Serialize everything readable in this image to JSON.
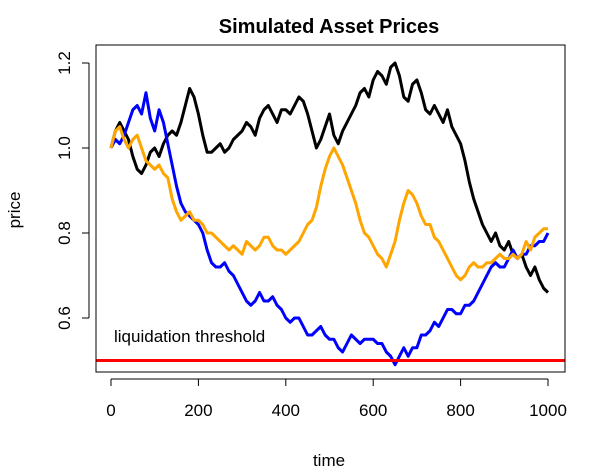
{
  "chart_data": {
    "type": "line",
    "title": "Simulated Asset Prices",
    "xlabel": "time",
    "ylabel": "price",
    "xlim": [
      0,
      1000
    ],
    "ylim": [
      0.5,
      1.2
    ],
    "x_ticks": [
      0,
      200,
      400,
      600,
      800,
      1000
    ],
    "y_ticks": [
      0.6,
      0.8,
      1.0,
      1.2
    ],
    "x_tick_labels": [
      "0",
      "200",
      "400",
      "600",
      "800",
      "1000"
    ],
    "y_tick_labels": [
      "0.6",
      "0.8",
      "1.0",
      "1.2"
    ],
    "grid": false,
    "legend": "none",
    "threshold": {
      "value": 0.5,
      "label": "liquidation threshold",
      "color": "#ff0000"
    },
    "series": [
      {
        "color": "#000000",
        "x": [
          0,
          10,
          20,
          30,
          40,
          50,
          60,
          70,
          80,
          90,
          100,
          110,
          120,
          130,
          140,
          150,
          160,
          170,
          180,
          190,
          200,
          210,
          220,
          230,
          240,
          250,
          260,
          270,
          280,
          290,
          300,
          310,
          320,
          330,
          340,
          350,
          360,
          370,
          380,
          390,
          400,
          410,
          420,
          430,
          440,
          450,
          460,
          470,
          480,
          490,
          500,
          510,
          520,
          530,
          540,
          550,
          560,
          570,
          580,
          590,
          600,
          610,
          620,
          630,
          640,
          650,
          660,
          670,
          680,
          690,
          700,
          710,
          720,
          730,
          740,
          750,
          760,
          770,
          780,
          790,
          800,
          810,
          820,
          830,
          840,
          850,
          860,
          870,
          880,
          890,
          900,
          910,
          920,
          930,
          940,
          950,
          960,
          970,
          980,
          990,
          1000
        ],
        "values": [
          1.0,
          1.04,
          1.06,
          1.04,
          1.02,
          0.98,
          0.95,
          0.94,
          0.96,
          0.99,
          1.0,
          0.98,
          1.01,
          1.03,
          1.04,
          1.03,
          1.06,
          1.1,
          1.14,
          1.12,
          1.08,
          1.03,
          0.99,
          0.99,
          1.0,
          1.01,
          0.99,
          1.0,
          1.02,
          1.03,
          1.04,
          1.06,
          1.05,
          1.03,
          1.07,
          1.09,
          1.1,
          1.08,
          1.06,
          1.09,
          1.09,
          1.08,
          1.1,
          1.12,
          1.11,
          1.08,
          1.04,
          1.0,
          1.02,
          1.05,
          1.08,
          1.03,
          1.01,
          1.04,
          1.06,
          1.08,
          1.1,
          1.13,
          1.14,
          1.12,
          1.16,
          1.18,
          1.17,
          1.15,
          1.19,
          1.2,
          1.17,
          1.12,
          1.11,
          1.15,
          1.16,
          1.13,
          1.09,
          1.08,
          1.1,
          1.08,
          1.06,
          1.09,
          1.05,
          1.03,
          1.01,
          0.97,
          0.92,
          0.88,
          0.85,
          0.82,
          0.8,
          0.78,
          0.8,
          0.77,
          0.76,
          0.78,
          0.75,
          0.74,
          0.75,
          0.72,
          0.7,
          0.72,
          0.69,
          0.67,
          0.66
        ]
      },
      {
        "color": "#0000ff",
        "x": [
          0,
          10,
          20,
          30,
          40,
          50,
          60,
          70,
          80,
          90,
          100,
          110,
          120,
          130,
          140,
          150,
          160,
          170,
          180,
          190,
          200,
          210,
          220,
          230,
          240,
          250,
          260,
          270,
          280,
          290,
          300,
          310,
          320,
          330,
          340,
          350,
          360,
          370,
          380,
          390,
          400,
          410,
          420,
          430,
          440,
          450,
          460,
          470,
          480,
          490,
          500,
          510,
          520,
          530,
          540,
          550,
          560,
          570,
          580,
          590,
          600,
          610,
          620,
          630,
          640,
          650,
          660,
          670,
          680,
          690,
          700,
          710,
          720,
          730,
          740,
          750,
          760,
          770,
          780,
          790,
          800,
          810,
          820,
          830,
          840,
          850,
          860,
          870,
          880,
          890,
          900,
          910,
          920,
          930,
          940,
          950,
          960,
          970,
          980,
          990,
          1000
        ],
        "values": [
          1.0,
          1.02,
          1.01,
          1.03,
          1.06,
          1.09,
          1.1,
          1.08,
          1.13,
          1.07,
          1.04,
          1.09,
          1.06,
          1.01,
          0.96,
          0.91,
          0.87,
          0.85,
          0.84,
          0.83,
          0.82,
          0.8,
          0.76,
          0.73,
          0.72,
          0.72,
          0.73,
          0.71,
          0.7,
          0.68,
          0.66,
          0.64,
          0.63,
          0.64,
          0.66,
          0.64,
          0.64,
          0.65,
          0.63,
          0.62,
          0.6,
          0.59,
          0.6,
          0.6,
          0.58,
          0.56,
          0.56,
          0.57,
          0.58,
          0.56,
          0.55,
          0.55,
          0.53,
          0.52,
          0.54,
          0.56,
          0.55,
          0.54,
          0.55,
          0.55,
          0.55,
          0.54,
          0.54,
          0.52,
          0.51,
          0.49,
          0.51,
          0.53,
          0.51,
          0.53,
          0.53,
          0.56,
          0.56,
          0.57,
          0.59,
          0.58,
          0.6,
          0.62,
          0.62,
          0.61,
          0.61,
          0.63,
          0.63,
          0.64,
          0.66,
          0.68,
          0.7,
          0.72,
          0.73,
          0.72,
          0.72,
          0.74,
          0.76,
          0.74,
          0.75,
          0.75,
          0.77,
          0.77,
          0.78,
          0.78,
          0.8
        ]
      },
      {
        "color": "#ffa500",
        "x": [
          0,
          10,
          20,
          30,
          40,
          50,
          60,
          70,
          80,
          90,
          100,
          110,
          120,
          130,
          140,
          150,
          160,
          170,
          180,
          190,
          200,
          210,
          220,
          230,
          240,
          250,
          260,
          270,
          280,
          290,
          300,
          310,
          320,
          330,
          340,
          350,
          360,
          370,
          380,
          390,
          400,
          410,
          420,
          430,
          440,
          450,
          460,
          470,
          480,
          490,
          500,
          510,
          520,
          530,
          540,
          550,
          560,
          570,
          580,
          590,
          600,
          610,
          620,
          630,
          640,
          650,
          660,
          670,
          680,
          690,
          700,
          710,
          720,
          730,
          740,
          750,
          760,
          770,
          780,
          790,
          800,
          810,
          820,
          830,
          840,
          850,
          860,
          870,
          880,
          890,
          900,
          910,
          920,
          930,
          940,
          950,
          960,
          970,
          980,
          990,
          1000
        ],
        "values": [
          1.0,
          1.04,
          1.05,
          1.02,
          1.0,
          1.02,
          1.03,
          1.0,
          0.97,
          0.96,
          0.95,
          0.96,
          0.94,
          0.93,
          0.88,
          0.85,
          0.83,
          0.84,
          0.85,
          0.83,
          0.83,
          0.82,
          0.8,
          0.8,
          0.79,
          0.78,
          0.77,
          0.76,
          0.77,
          0.76,
          0.75,
          0.78,
          0.77,
          0.76,
          0.77,
          0.79,
          0.79,
          0.77,
          0.76,
          0.76,
          0.75,
          0.76,
          0.77,
          0.78,
          0.8,
          0.82,
          0.83,
          0.86,
          0.91,
          0.95,
          0.98,
          1.0,
          0.98,
          0.96,
          0.93,
          0.9,
          0.87,
          0.83,
          0.8,
          0.79,
          0.77,
          0.75,
          0.74,
          0.72,
          0.75,
          0.78,
          0.83,
          0.87,
          0.9,
          0.89,
          0.87,
          0.84,
          0.82,
          0.82,
          0.79,
          0.78,
          0.76,
          0.74,
          0.72,
          0.7,
          0.69,
          0.7,
          0.72,
          0.73,
          0.72,
          0.72,
          0.73,
          0.73,
          0.74,
          0.75,
          0.74,
          0.74,
          0.75,
          0.74,
          0.75,
          0.78,
          0.76,
          0.79,
          0.8,
          0.81,
          0.81
        ]
      }
    ]
  }
}
